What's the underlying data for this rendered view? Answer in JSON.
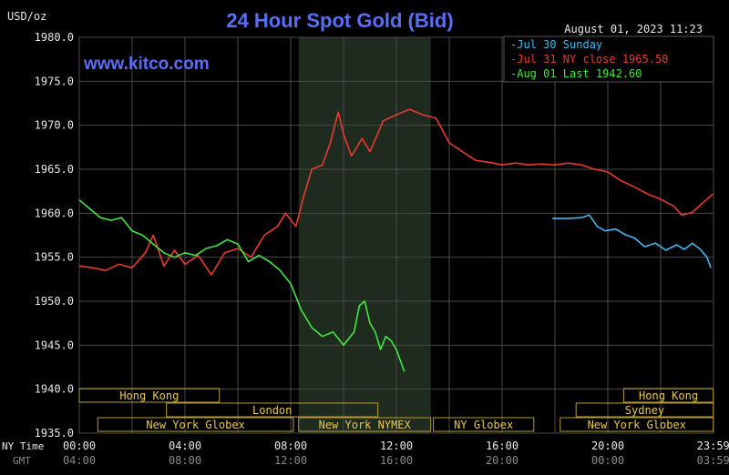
{
  "header": {
    "unit_label": "USD/oz",
    "title": "24 Hour Spot Gold (Bid)",
    "timestamp": "August 01, 2023 11:23",
    "watermark": "www.kitco.com"
  },
  "axis": {
    "ny_time_label": "NY Time",
    "gmt_label": "GMT",
    "ny_ticks": [
      "00:00",
      "04:00",
      "08:00",
      "12:00",
      "16:00",
      "20:00",
      "23:59"
    ],
    "gmt_ticks": [
      "04:00",
      "08:00",
      "12:00",
      "16:00",
      "20:00",
      "00:00",
      "03:59"
    ]
  },
  "sessions": [
    {
      "label": "Hong Kong",
      "start": 0,
      "end": 5.3,
      "row": 0
    },
    {
      "label": "London",
      "start": 3.3,
      "end": 11.3,
      "row": 1
    },
    {
      "label": "New York Globex",
      "start": 0.7,
      "end": 8.1,
      "row": 2
    },
    {
      "label": "New York NYMEX",
      "start": 8.3,
      "end": 13.3,
      "row": 2
    },
    {
      "label": "NY Globex",
      "start": 13.4,
      "end": 17.2,
      "row": 2
    },
    {
      "label": "Hong Kong",
      "start": 20.6,
      "end": 23.99,
      "row": 0
    },
    {
      "label": "Sydney",
      "start": 18.8,
      "end": 23.99,
      "row": 1
    },
    {
      "label": "New York Globex",
      "start": 18.2,
      "end": 23.99,
      "row": 2
    }
  ],
  "chart_data": {
    "type": "line",
    "title": "24 Hour Spot Gold (Bid)",
    "ylabel": "USD/oz",
    "xlabel": "NY Time",
    "xlim": [
      0,
      24
    ],
    "ylim": [
      1935,
      1980
    ],
    "y_ticks": [
      "1935.0",
      "1940.0",
      "1945.0",
      "1950.0",
      "1955.0",
      "1960.0",
      "1965.0",
      "1970.0",
      "1975.0",
      "1980.0"
    ],
    "grid": true,
    "legend_position": "top-right",
    "nymex_shade": [
      8.3,
      13.3
    ],
    "series": [
      {
        "name": "Jul 30 Sunday",
        "color": "#40b8f0",
        "x": [
          17.9,
          18.5,
          19.0,
          19.3,
          19.6,
          19.9,
          20.3,
          20.7,
          21.0,
          21.4,
          21.8,
          22.2,
          22.6,
          22.9,
          23.2,
          23.5,
          23.75,
          23.9
        ],
        "y": [
          1959.4,
          1959.4,
          1959.5,
          1959.8,
          1958.5,
          1958.0,
          1958.2,
          1957.5,
          1957.2,
          1956.2,
          1956.6,
          1955.8,
          1956.4,
          1955.9,
          1956.6,
          1955.9,
          1955.0,
          1953.8
        ]
      },
      {
        "name": "Jul 31 NY close 1965.50",
        "color": "#e83a30",
        "x": [
          0,
          0.5,
          1.0,
          1.5,
          2.0,
          2.5,
          2.8,
          3.2,
          3.6,
          4.0,
          4.5,
          5.0,
          5.5,
          6.0,
          6.5,
          7.0,
          7.5,
          7.8,
          8.2,
          8.5,
          8.8,
          9.2,
          9.5,
          9.8,
          10.0,
          10.3,
          10.7,
          11.0,
          11.5,
          12.0,
          12.5,
          13.0,
          13.5,
          14.0,
          14.5,
          15.0,
          15.5,
          16.0,
          16.5,
          17.0,
          17.5,
          18.0,
          18.5,
          19.0,
          19.5,
          20.0,
          20.5,
          21.0,
          21.5,
          22.0,
          22.5,
          22.8,
          23.2,
          23.6,
          23.99
        ],
        "y": [
          1954.0,
          1953.8,
          1953.5,
          1954.2,
          1953.8,
          1955.5,
          1957.5,
          1954.0,
          1955.8,
          1954.2,
          1955.2,
          1953.0,
          1955.5,
          1956.0,
          1955.0,
          1957.5,
          1958.5,
          1960.0,
          1958.5,
          1962.0,
          1965.0,
          1965.5,
          1968.0,
          1971.5,
          1969.0,
          1966.5,
          1968.5,
          1967.0,
          1970.5,
          1971.2,
          1971.8,
          1971.2,
          1970.8,
          1968.0,
          1967.0,
          1966.0,
          1965.8,
          1965.5,
          1965.7,
          1965.5,
          1965.6,
          1965.5,
          1965.7,
          1965.5,
          1965.0,
          1964.7,
          1963.7,
          1963.0,
          1962.2,
          1961.6,
          1960.8,
          1959.8,
          1960.1,
          1961.2,
          1962.2
        ]
      },
      {
        "name": "Aug 01 Last 1942.60",
        "color": "#40e840",
        "x": [
          0,
          0.4,
          0.8,
          1.2,
          1.6,
          2.0,
          2.4,
          2.8,
          3.2,
          3.6,
          4.0,
          4.4,
          4.8,
          5.2,
          5.6,
          6.0,
          6.4,
          6.8,
          7.2,
          7.6,
          8.0,
          8.4,
          8.8,
          9.2,
          9.6,
          10.0,
          10.4,
          10.6,
          10.8,
          11.0,
          11.2,
          11.4,
          11.6,
          11.8,
          12.0,
          12.3
        ],
        "y": [
          1961.5,
          1960.5,
          1959.5,
          1959.2,
          1959.5,
          1958.0,
          1957.5,
          1956.5,
          1955.5,
          1955.0,
          1955.5,
          1955.2,
          1956.0,
          1956.3,
          1957.0,
          1956.5,
          1954.5,
          1955.2,
          1954.5,
          1953.5,
          1952.0,
          1949.0,
          1947.0,
          1946.0,
          1946.5,
          1945.0,
          1946.5,
          1949.5,
          1950.0,
          1947.5,
          1946.5,
          1944.5,
          1946.0,
          1945.5,
          1944.5,
          1942.0
        ]
      }
    ]
  }
}
